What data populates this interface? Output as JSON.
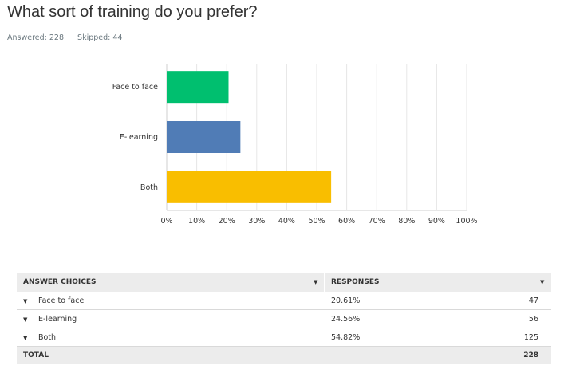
{
  "question": "What sort of training do you prefer?",
  "answered": "Answered: 228",
  "skipped": "Skipped: 44",
  "chart_data": {
    "type": "bar",
    "orientation": "horizontal",
    "categories": [
      "Face to face",
      "E-learning",
      "Both"
    ],
    "values": [
      20.61,
      24.56,
      54.82
    ],
    "colors": [
      "#00bf6f",
      "#507cb6",
      "#f9be00"
    ],
    "xlim": [
      0,
      100
    ],
    "xticks": [
      "0%",
      "10%",
      "20%",
      "30%",
      "40%",
      "50%",
      "60%",
      "70%",
      "80%",
      "90%",
      "100%"
    ],
    "grid": true
  },
  "table": {
    "headers": [
      "ANSWER CHOICES",
      "RESPONSES"
    ],
    "rows": [
      {
        "choice": "Face to face",
        "percent": "20.61%",
        "count": "47"
      },
      {
        "choice": "E-learning",
        "percent": "24.56%",
        "count": "56"
      },
      {
        "choice": "Both",
        "percent": "54.82%",
        "count": "125"
      }
    ],
    "total_label": "TOTAL",
    "total": "228"
  }
}
